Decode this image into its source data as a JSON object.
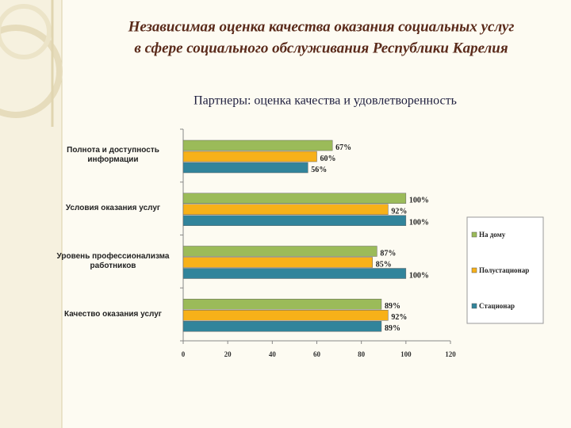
{
  "chart_data": {
    "type": "bar",
    "orientation": "horizontal",
    "title": [
      "Независимая оценка качества оказания социальных услуг",
      "в сфере социального  обслуживания Республики Карелия"
    ],
    "subtitle": "Партнеры: оценка качества и удовлетворенность",
    "categories": [
      "Полнота и доступность информации",
      "Условия оказания услуг",
      "Уровень профессионализма работников",
      "Качество оказания услуг"
    ],
    "series": [
      {
        "name": "На дому",
        "color": "#9bbb59",
        "values": [
          67,
          100,
          87,
          89
        ],
        "value_labels": [
          "67%",
          "100%",
          "87%",
          "89%"
        ]
      },
      {
        "name": "Полустационар",
        "color": "#f7b119",
        "values": [
          60,
          92,
          85,
          92
        ],
        "value_labels": [
          "60%",
          "92%",
          "85%",
          "92%"
        ]
      },
      {
        "name": "Стационар",
        "color": "#31849b",
        "values": [
          56,
          100,
          100,
          89
        ],
        "value_labels": [
          "56%",
          "100%",
          "100%",
          "89%"
        ]
      }
    ],
    "xlim": [
      0,
      120
    ],
    "xticks": [
      0,
      20,
      40,
      60,
      80,
      100,
      120
    ],
    "grid": false,
    "legend": "right"
  }
}
